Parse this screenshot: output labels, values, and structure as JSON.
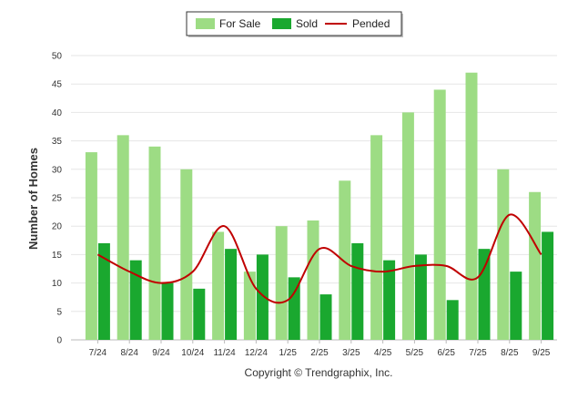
{
  "chart_data": {
    "type": "bar",
    "categories": [
      "7/24",
      "8/24",
      "9/24",
      "10/24",
      "11/24",
      "12/24",
      "1/25",
      "2/25",
      "3/25",
      "4/25",
      "5/25",
      "6/25",
      "7/25",
      "8/25",
      "9/25"
    ],
    "series": [
      {
        "name": "For Sale",
        "type": "bar",
        "color": "#9ddc84",
        "values": [
          33,
          36,
          34,
          30,
          19,
          12,
          20,
          21,
          28,
          36,
          40,
          44,
          47,
          30,
          26
        ]
      },
      {
        "name": "Sold",
        "type": "bar",
        "color": "#1aa82f",
        "values": [
          17,
          14,
          10,
          9,
          16,
          15,
          11,
          8,
          17,
          14,
          15,
          7,
          16,
          12,
          19
        ]
      },
      {
        "name": "Pended",
        "type": "line",
        "color": "#c00000",
        "values": [
          15,
          12,
          10,
          12,
          20,
          9,
          7,
          16,
          13,
          12,
          13,
          13,
          11,
          22,
          15
        ]
      }
    ],
    "title": "",
    "xlabel": "",
    "ylabel": "Number of Homes",
    "ylim": [
      0,
      50
    ],
    "yticks": [
      0,
      5,
      10,
      15,
      20,
      25,
      30,
      35,
      40,
      45,
      50
    ],
    "grid": true,
    "legend_position": "top-center"
  },
  "footer": {
    "copyright": "Copyright © Trendgraphix, Inc."
  }
}
